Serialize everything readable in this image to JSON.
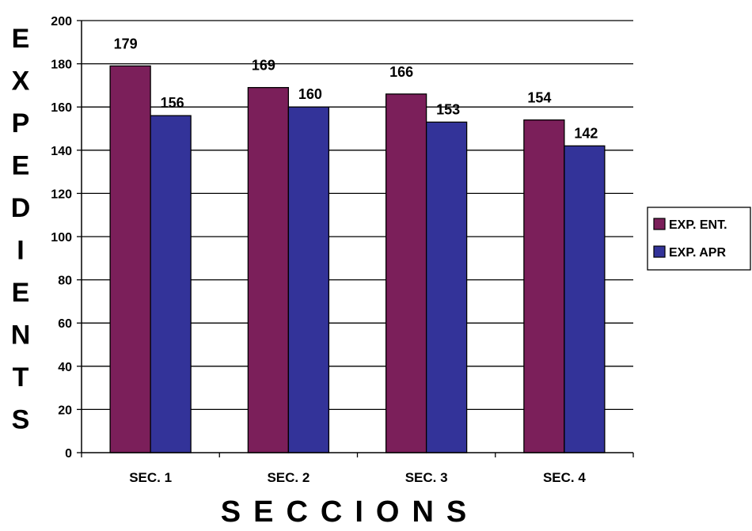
{
  "chart_data": {
    "type": "bar",
    "categories": [
      "SEC. 1",
      "SEC. 2",
      "SEC. 3",
      "SEC. 4"
    ],
    "series": [
      {
        "name": "EXP. ENT.",
        "values": [
          179,
          169,
          166,
          154
        ],
        "color": "#7b1f5a"
      },
      {
        "name": "EXP. APR",
        "values": [
          156,
          160,
          153,
          142
        ],
        "color": "#333399"
      }
    ],
    "xlabel": "SECCIONS",
    "ylabel": "EXPEDIENTS",
    "ylim": [
      0,
      200
    ],
    "yticks": [
      0,
      20,
      40,
      60,
      80,
      100,
      120,
      140,
      160,
      180,
      200
    ],
    "grid": true,
    "legend": "right",
    "data_labels": true
  }
}
